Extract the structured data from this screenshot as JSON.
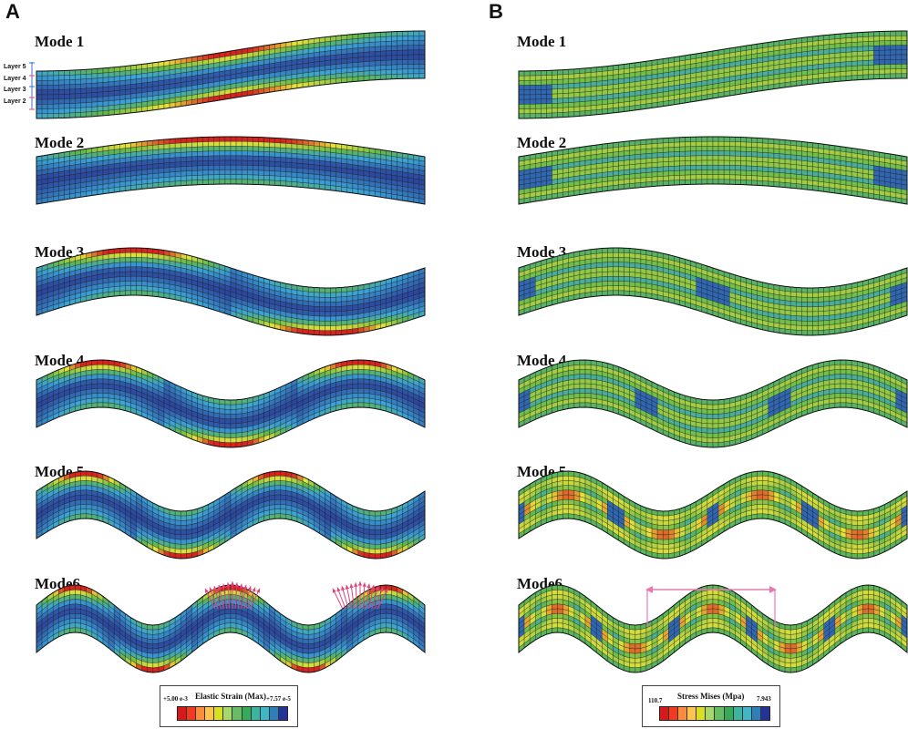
{
  "panels": {
    "a": {
      "letter": "A",
      "modes": [
        "Mode 1",
        "Mode 2",
        "Mode 3",
        "Mode 4",
        "Mode 5",
        "Mode6"
      ]
    },
    "b": {
      "letter": "B",
      "modes": [
        "Mode 1",
        "Mode 2",
        "Mode 3",
        "Mode 4",
        "Mode 5",
        "Mode6"
      ]
    }
  },
  "layers": [
    "Layer 5",
    "Layer 4",
    "Layer 3",
    "Layer 2"
  ],
  "legend_a": {
    "title": "Elastic Strain (Max)",
    "max_label": "+5.00 e-3",
    "min_label": "+7.57 e-5"
  },
  "legend_b": {
    "title": "Stress Mises (Mpa)",
    "max_label": "110.7",
    "min_label": "7.943"
  },
  "colors": {
    "scale": [
      "#d7191c",
      "#f03b20",
      "#fd8d3c",
      "#fec44f",
      "#d9e021",
      "#a6d96a",
      "#66bd63",
      "#38a85a",
      "#3cb4a0",
      "#41b6c4",
      "#2c7fb8",
      "#253494"
    ],
    "arrow": "#e0457b",
    "span_arrow": "#e87ab0",
    "deep_blue": "#2a3f9a",
    "light_blue": "#3aa4d8",
    "green": "#5fb84a",
    "yellow": "#e9e33a",
    "red": "#d9231f"
  }
}
